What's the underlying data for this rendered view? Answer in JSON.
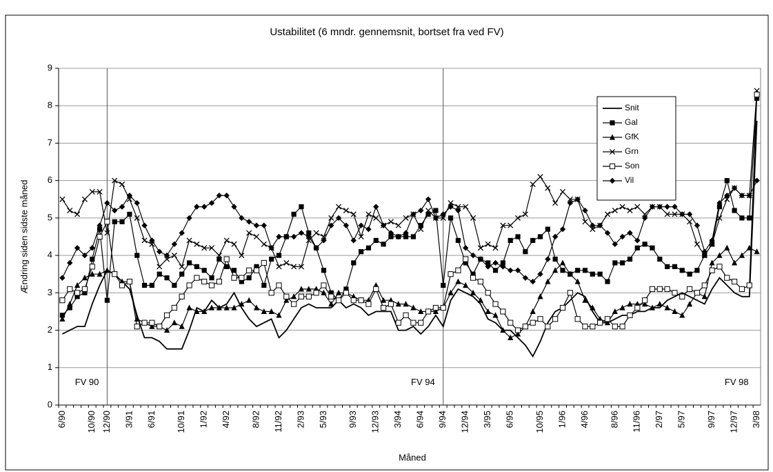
{
  "chart_data": {
    "type": "line",
    "title": "Ustabilitet (6 mndr. gennemsnit, bortset fra ved FV)",
    "x_label": "Måned",
    "y_label": "Ændring siden sidste måned",
    "categories": [
      "6/90",
      null,
      null,
      null,
      "10/90",
      null,
      "12/90",
      null,
      null,
      "3/91",
      null,
      null,
      "6/91",
      null,
      null,
      null,
      "10/91",
      null,
      null,
      "1/92",
      null,
      null,
      "4/92",
      null,
      null,
      null,
      "8/92",
      null,
      null,
      "11/92",
      null,
      null,
      "2/93",
      null,
      null,
      "5/93",
      null,
      null,
      null,
      "9/93",
      null,
      null,
      "12/93",
      null,
      null,
      "3/94",
      null,
      null,
      "6/94",
      null,
      null,
      "9/94",
      null,
      null,
      "12/94",
      null,
      null,
      "3/95",
      null,
      null,
      "6/95",
      null,
      null,
      null,
      "10/95",
      null,
      null,
      "1/96",
      null,
      null,
      "4/96",
      null,
      null,
      null,
      "8/96",
      null,
      null,
      "11/96",
      null,
      null,
      "2/97",
      null,
      null,
      "5/97",
      null,
      null,
      null,
      "9/97",
      null,
      null,
      "12/97",
      null,
      null,
      "3/98"
    ],
    "series": [
      {
        "name": "Snit",
        "color": "#000000",
        "marker": "none",
        "values": [
          1.9,
          2.0,
          2.1,
          2.1,
          2.7,
          3.2,
          3.6,
          3.5,
          3.3,
          3.1,
          2.4,
          1.8,
          1.8,
          1.7,
          1.5,
          1.5,
          1.5,
          2.0,
          2.6,
          2.5,
          2.8,
          2.6,
          2.7,
          3.0,
          2.6,
          2.3,
          2.1,
          2.2,
          2.3,
          1.8,
          2.0,
          2.3,
          2.6,
          2.7,
          2.6,
          2.6,
          2.6,
          2.8,
          2.6,
          2.7,
          2.6,
          2.4,
          2.5,
          2.5,
          2.5,
          2.0,
          2.0,
          2.1,
          1.9,
          2.1,
          2.4,
          2.1,
          2.8,
          3.1,
          3.0,
          2.9,
          2.7,
          2.3,
          2.2,
          2.0,
          2.0,
          1.8,
          1.6,
          1.3,
          1.7,
          2.2,
          2.5,
          2.6,
          2.8,
          3.0,
          2.9,
          2.5,
          2.2,
          2.2,
          2.3,
          2.4,
          2.4,
          2.5,
          2.5,
          2.6,
          2.6,
          2.8,
          2.9,
          3.0,
          2.9,
          2.8,
          2.7,
          3.1,
          3.4,
          3.2,
          3.0,
          2.9,
          2.9,
          7.6
        ]
      },
      {
        "name": "Gal",
        "color": "#000000",
        "marker": "square",
        "values": [
          2.4,
          2.6,
          2.9,
          3.0,
          3.9,
          4.7,
          2.8,
          4.9,
          4.9,
          5.1,
          4.0,
          3.2,
          3.2,
          3.5,
          3.4,
          3.2,
          3.5,
          3.8,
          3.7,
          3.6,
          3.4,
          3.9,
          3.7,
          3.6,
          3.3,
          3.4,
          3.7,
          3.2,
          3.9,
          4.0,
          4.5,
          5.1,
          5.3,
          4.6,
          4.2,
          3.6,
          3.0,
          2.8,
          3.1,
          3.8,
          4.1,
          4.2,
          4.4,
          4.3,
          4.5,
          4.5,
          4.5,
          4.5,
          4.8,
          5.1,
          5.2,
          3.2,
          5.0,
          4.4,
          3.8,
          3.5,
          3.9,
          3.8,
          3.6,
          3.8,
          4.4,
          4.5,
          4.1,
          4.4,
          4.5,
          4.7,
          3.9,
          3.6,
          3.5,
          3.6,
          3.6,
          3.5,
          3.5,
          3.3,
          3.8,
          3.8,
          3.9,
          4.2,
          4.3,
          4.2,
          3.9,
          3.7,
          3.7,
          3.6,
          3.5,
          3.6,
          4.0,
          4.3,
          5.3,
          6.0,
          5.2,
          5.0,
          5.0,
          8.2
        ]
      },
      {
        "name": "GfK",
        "color": "#000000",
        "marker": "triangle",
        "values": [
          2.3,
          2.7,
          3.2,
          3.4,
          3.5,
          3.5,
          3.6,
          3.5,
          3.3,
          3.3,
          2.3,
          2.2,
          2.1,
          2.1,
          2.0,
          2.2,
          2.1,
          2.6,
          2.5,
          2.5,
          2.6,
          2.6,
          2.6,
          2.6,
          2.7,
          2.8,
          2.6,
          2.5,
          2.5,
          2.4,
          2.8,
          2.9,
          3.1,
          3.1,
          3.1,
          3.0,
          2.7,
          3.0,
          3.0,
          2.9,
          2.8,
          2.8,
          3.2,
          2.8,
          2.8,
          2.7,
          2.7,
          2.6,
          2.5,
          2.5,
          2.5,
          2.6,
          3.0,
          3.3,
          3.2,
          3.0,
          2.8,
          2.5,
          2.4,
          2.0,
          1.8,
          1.9,
          2.1,
          2.5,
          2.9,
          3.3,
          3.6,
          3.8,
          3.5,
          3.3,
          2.8,
          2.6,
          2.3,
          2.2,
          2.5,
          2.6,
          2.7,
          2.7,
          2.7,
          2.6,
          2.7,
          2.6,
          2.5,
          2.4,
          2.7,
          3.0,
          2.9,
          3.8,
          4.0,
          4.2,
          3.8,
          4.0,
          4.2,
          4.1
        ]
      },
      {
        "name": "Grn",
        "color": "#000000",
        "marker": "cross",
        "values": [
          5.5,
          5.2,
          5.1,
          5.5,
          5.7,
          5.7,
          4.6,
          6.0,
          5.9,
          5.5,
          5.0,
          4.4,
          4.3,
          3.7,
          3.9,
          4.0,
          3.7,
          4.4,
          4.3,
          4.2,
          4.2,
          4.0,
          4.4,
          4.3,
          4.0,
          4.6,
          4.5,
          4.3,
          4.2,
          3.7,
          3.8,
          3.7,
          3.7,
          4.4,
          4.6,
          4.5,
          5.0,
          5.3,
          5.2,
          5.1,
          4.5,
          5.1,
          5.0,
          4.8,
          4.9,
          4.8,
          5.0,
          5.1,
          4.7,
          5.2,
          5.0,
          5.0,
          5.4,
          5.3,
          5.3,
          5.0,
          4.2,
          4.3,
          4.2,
          4.8,
          4.8,
          5.0,
          5.1,
          5.9,
          6.1,
          5.8,
          5.4,
          5.7,
          5.5,
          5.5,
          4.9,
          4.7,
          4.8,
          5.1,
          5.2,
          5.3,
          5.2,
          5.3,
          5.1,
          5.3,
          5.3,
          5.1,
          5.1,
          5.1,
          4.9,
          4.3,
          4.0,
          4.3,
          5.0,
          5.5,
          5.8,
          5.6,
          5.6,
          8.4
        ]
      },
      {
        "name": "Son",
        "color": "#000000",
        "marker": "open-square",
        "values": [
          2.8,
          3.1,
          3.0,
          3.1,
          3.7,
          4.5,
          4.9,
          3.5,
          3.2,
          3.3,
          2.1,
          2.2,
          2.2,
          2.1,
          2.4,
          2.6,
          2.9,
          3.2,
          3.4,
          3.3,
          3.2,
          3.3,
          3.9,
          3.4,
          3.4,
          3.6,
          3.6,
          3.8,
          3.0,
          3.2,
          2.9,
          2.7,
          2.9,
          2.9,
          3.0,
          3.2,
          2.9,
          2.8,
          3.0,
          2.8,
          2.8,
          2.7,
          3.1,
          2.6,
          2.7,
          2.2,
          2.4,
          2.2,
          2.2,
          2.5,
          2.6,
          2.6,
          3.5,
          3.6,
          3.9,
          3.4,
          3.3,
          3.0,
          2.7,
          2.5,
          2.2,
          2.0,
          2.1,
          2.2,
          2.3,
          2.1,
          2.3,
          2.6,
          3.0,
          2.3,
          2.1,
          2.1,
          2.2,
          2.3,
          2.1,
          2.1,
          2.4,
          2.6,
          2.8,
          3.1,
          3.1,
          3.1,
          3.0,
          2.9,
          3.1,
          3.0,
          3.2,
          3.6,
          3.7,
          3.4,
          3.3,
          3.1,
          3.2,
          8.3
        ]
      },
      {
        "name": "Vil",
        "color": "#000000",
        "marker": "diamond",
        "values": [
          3.4,
          3.8,
          4.2,
          4.0,
          4.2,
          4.8,
          5.4,
          5.2,
          5.3,
          5.6,
          5.4,
          4.8,
          4.4,
          4.1,
          4.0,
          4.3,
          4.6,
          5.0,
          5.3,
          5.3,
          5.4,
          5.6,
          5.6,
          5.3,
          5.0,
          4.9,
          4.8,
          4.8,
          4.2,
          4.5,
          4.5,
          4.5,
          4.6,
          4.5,
          4.2,
          4.4,
          4.8,
          5.0,
          4.8,
          4.4,
          4.8,
          4.7,
          5.3,
          4.8,
          4.6,
          4.5,
          4.6,
          5.1,
          5.2,
          5.5,
          5.0,
          5.1,
          5.3,
          5.2,
          4.2,
          4.0,
          3.9,
          3.7,
          3.8,
          3.7,
          3.6,
          3.6,
          3.4,
          3.3,
          3.5,
          3.9,
          4.5,
          4.7,
          5.4,
          5.5,
          5.2,
          4.8,
          4.8,
          4.6,
          4.3,
          4.5,
          4.6,
          4.4,
          5.0,
          5.3,
          5.3,
          5.3,
          5.3,
          5.1,
          5.1,
          4.8,
          4.1,
          4.4,
          5.4,
          5.6,
          5.8,
          5.6,
          5.6,
          6.0
        ]
      }
    ],
    "annotations": [
      {
        "text": "FV 90",
        "x": "12/90"
      },
      {
        "text": "FV 94",
        "x": "9/94"
      },
      {
        "text": "FV 98",
        "x": "3/98"
      }
    ],
    "ylim": [
      0,
      9
    ],
    "yticks": [
      0,
      1,
      2,
      3,
      4,
      5,
      6,
      7,
      8,
      9
    ],
    "grid": true,
    "legend": "upper right"
  }
}
